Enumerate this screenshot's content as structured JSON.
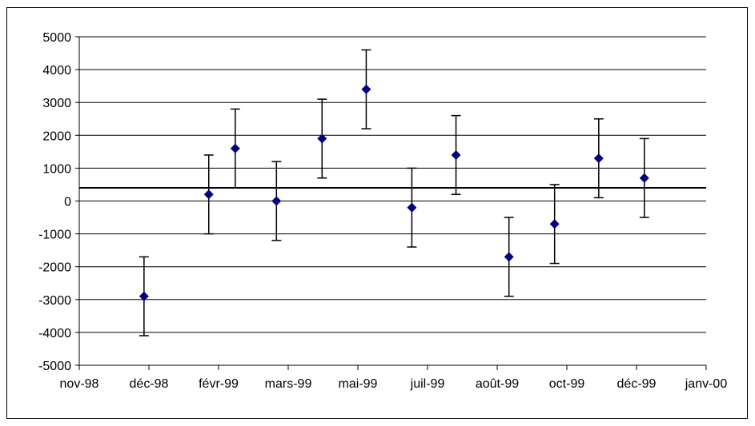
{
  "chart_data": {
    "type": "scatter",
    "title": "",
    "xlabel": "",
    "ylabel": "",
    "x_tick_labels": [
      "nov-98",
      "déc-98",
      "févr-99",
      "mars-99",
      "mai-99",
      "juil-99",
      "août-99",
      "oct-99",
      "déc-99",
      "janv-00"
    ],
    "x_range": [
      "1998-11-01",
      "2000-01-01"
    ],
    "ylim": [
      -5000,
      5000
    ],
    "y_ticks": [
      5000,
      4000,
      3000,
      2000,
      1000,
      0,
      -1000,
      -2000,
      -3000,
      -4000,
      -5000
    ],
    "grid": "horizontal",
    "reference_line": 400,
    "error_bar": 1200,
    "series": [
      {
        "marker": "diamond",
        "color": "#000080",
        "points": [
          {
            "x": "1998-12-15",
            "y": -2900
          },
          {
            "x": "1999-01-28",
            "y": 200
          },
          {
            "x": "1999-02-15",
            "y": 1600
          },
          {
            "x": "1999-03-15",
            "y": 0
          },
          {
            "x": "1999-04-15",
            "y": 1900
          },
          {
            "x": "1999-05-15",
            "y": 3400
          },
          {
            "x": "1999-06-15",
            "y": -200
          },
          {
            "x": "1999-07-15",
            "y": 1400
          },
          {
            "x": "1999-08-20",
            "y": -1700
          },
          {
            "x": "1999-09-20",
            "y": -700
          },
          {
            "x": "1999-10-20",
            "y": 1300
          },
          {
            "x": "1999-11-20",
            "y": 700
          }
        ]
      }
    ]
  }
}
